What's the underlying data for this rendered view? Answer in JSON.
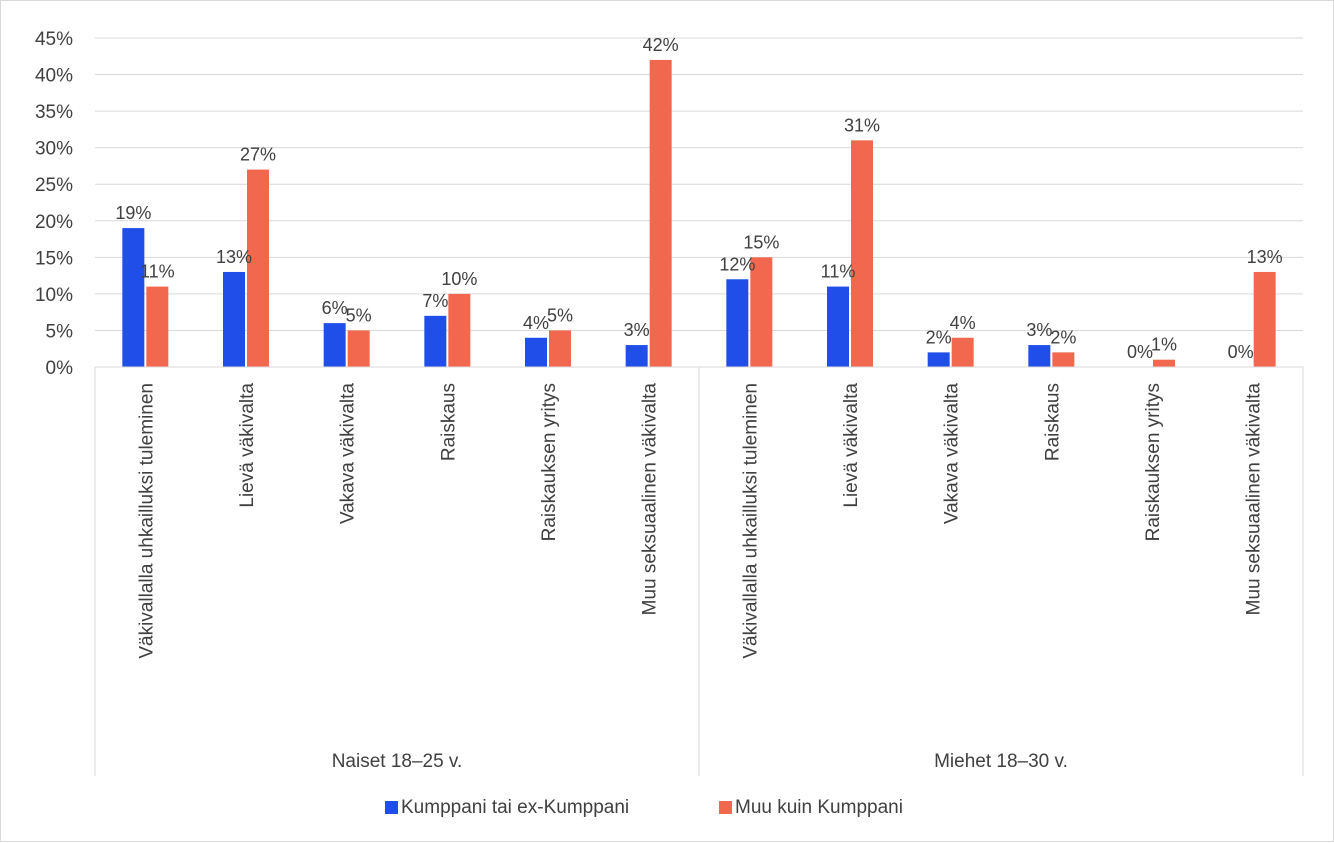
{
  "chart_data": {
    "type": "bar",
    "title": "",
    "xlabel": "",
    "ylabel": "",
    "ylim": [
      0,
      45
    ],
    "y_ticks": [
      "0%",
      "5%",
      "10%",
      "15%",
      "20%",
      "25%",
      "30%",
      "35%",
      "40%",
      "45%"
    ],
    "grid": true,
    "legend_position": "bottom",
    "groups": [
      {
        "label": "Naiset 18–25 v.",
        "categories": [
          "Väkivallalla uhkailluksi tuleminen",
          "Lievä väkivalta",
          "Vakava väkivalta",
          "Raiskaus",
          "Raiskauksen yritys",
          "Muu seksuaalinen väkivalta"
        ]
      },
      {
        "label": "Miehet 18–30 v.",
        "categories": [
          "Väkivallalla uhkailluksi tuleminen",
          "Lievä väkivalta",
          "Vakava väkivalta",
          "Raiskaus",
          "Raiskauksen yritys",
          "Muu seksuaalinen väkivalta"
        ]
      }
    ],
    "series": [
      {
        "name": "Kumppani tai ex-Kumppani",
        "color": "#1f4fe8",
        "values": [
          19,
          13,
          6,
          7,
          4,
          3,
          12,
          11,
          2,
          3,
          0,
          0
        ],
        "labels": [
          "19%",
          "13%",
          "6%",
          "7%",
          "4%",
          "3%",
          "12%",
          "11%",
          "2%",
          "3%",
          "0%",
          "0%"
        ]
      },
      {
        "name": "Muu kuin Kumppani",
        "color": "#f2684f",
        "values": [
          11,
          27,
          5,
          10,
          5,
          42,
          15,
          31,
          4,
          2,
          1,
          13
        ],
        "labels": [
          "11%",
          "27%",
          "5%",
          "10%",
          "5%",
          "42%",
          "15%",
          "31%",
          "4%",
          "2%",
          "1%",
          "13%"
        ]
      }
    ]
  }
}
